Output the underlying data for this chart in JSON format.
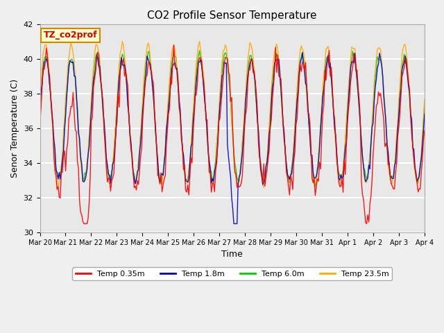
{
  "title": "CO2 Profile Sensor Temperature",
  "xlabel": "Time",
  "ylabel": "Senor Temperature (C)",
  "ylim": [
    30,
    42
  ],
  "yticks": [
    30,
    32,
    34,
    36,
    38,
    40,
    42
  ],
  "plot_bg": "#e8e8e8",
  "fig_bg": "#f0f0f0",
  "grid_color": "#ffffff",
  "annotation_text": "TZ_co2prof",
  "annotation_bg": "#ffffcc",
  "annotation_edge": "#cc8800",
  "annotation_text_color": "#cc0000",
  "colors": {
    "0.35m": "#ff0000",
    "1.8m": "#0000cc",
    "6.0m": "#00cc00",
    "23.5m": "#ffaa00"
  },
  "legend_labels": [
    "Temp 0.35m",
    "Temp 1.8m",
    "Temp 6.0m",
    "Temp 23.5m"
  ],
  "x_tick_labels": [
    "Mar 20",
    "Mar 21",
    "Mar 22",
    "Mar 23",
    "Mar 24",
    "Mar 25",
    "Mar 26",
    "Mar 27",
    "Mar 28",
    "Mar 29",
    "Mar 30",
    "Mar 31",
    "Apr 1",
    "Apr 2",
    "Apr 3",
    "Apr 4"
  ],
  "n_days": 15
}
